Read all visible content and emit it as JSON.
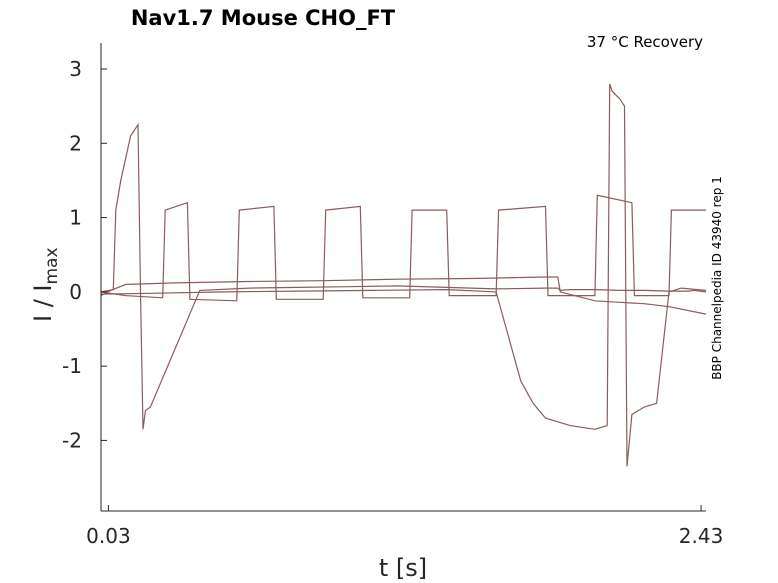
{
  "chart_data": {
    "type": "line",
    "title": "Nav1.7  Mouse  CHO_FT",
    "annotation": "37 °C  Recovery",
    "side_label": "BBP Channelpedia ID 43940 rep 1",
    "xlabel": "t [s]",
    "ylabel": "I / I",
    "ylabel_sub": "max",
    "xlim": [
      0.0,
      2.45
    ],
    "ylim": [
      -2.95,
      3.35
    ],
    "xticks": [
      0.03,
      2.43
    ],
    "xtick_labels": [
      "0.03",
      "2.43"
    ],
    "yticks": [
      3,
      2,
      1,
      0,
      -1,
      -2
    ],
    "ytick_labels": [
      "3",
      "2",
      "1",
      "0",
      "-1",
      "-2"
    ],
    "grid": false,
    "legend": "none",
    "color": "#8c5b5b",
    "series": [
      {
        "x": [
          0.0,
          0.05,
          0.06,
          0.08,
          0.1,
          0.12,
          0.15,
          0.16,
          0.17,
          0.18,
          0.2,
          0.4,
          0.6,
          0.8,
          1.0,
          1.2,
          1.4,
          1.6,
          1.8,
          1.85,
          1.86,
          1.9,
          2.0,
          2.1,
          2.2,
          2.3,
          2.38,
          2.4,
          2.45
        ],
        "y": [
          0.0,
          0.03,
          1.1,
          1.5,
          1.8,
          2.1,
          2.25,
          0.0,
          -1.85,
          -1.6,
          -1.55,
          0.02,
          0.05,
          0.06,
          0.07,
          0.08,
          0.06,
          0.04,
          0.05,
          0.05,
          0.02,
          0.03,
          0.03,
          0.02,
          0.02,
          0.01,
          0.01,
          0.02,
          0.0
        ]
      },
      {
        "x": [
          0.0,
          0.04,
          0.1,
          0.3,
          0.6,
          0.9,
          1.2,
          1.5,
          1.8,
          1.85,
          1.86,
          2.0,
          2.1,
          2.2,
          2.3,
          2.45
        ],
        "y": [
          -0.05,
          0.02,
          0.1,
          0.12,
          0.14,
          0.15,
          0.17,
          0.18,
          0.2,
          0.2,
          0.0,
          -0.12,
          -0.14,
          -0.16,
          -0.2,
          -0.3
        ]
      },
      {
        "x": [
          0.0,
          0.2,
          0.5,
          0.8,
          1.1,
          1.4,
          1.6,
          1.65,
          1.7,
          1.75,
          1.8,
          1.9,
          2.0,
          2.05,
          2.06,
          2.07,
          2.1,
          2.12,
          2.13,
          2.15,
          2.2,
          2.25,
          2.3,
          2.35,
          2.45
        ],
        "y": [
          -0.03,
          -0.02,
          0.0,
          0.01,
          0.02,
          0.03,
          0.0,
          -0.6,
          -1.2,
          -1.5,
          -1.7,
          -1.8,
          -1.85,
          -1.8,
          2.8,
          2.7,
          2.6,
          2.5,
          -2.35,
          -1.65,
          -1.55,
          -1.5,
          0.0,
          0.05,
          0.02
        ]
      },
      {
        "x": [
          0.0,
          0.1,
          0.25,
          0.26,
          0.35,
          0.36,
          0.55,
          0.56,
          0.7,
          0.71,
          0.9,
          0.91,
          1.05,
          1.06,
          1.25,
          1.26,
          1.4,
          1.41,
          1.6,
          1.61,
          1.8,
          1.81,
          2.0,
          2.01,
          2.15,
          2.16,
          2.3,
          2.31,
          2.45
        ],
        "y": [
          0.0,
          -0.05,
          -0.08,
          1.1,
          1.2,
          -0.1,
          -0.12,
          1.1,
          1.15,
          -0.1,
          -0.1,
          1.1,
          1.15,
          -0.08,
          -0.08,
          1.1,
          1.1,
          -0.05,
          -0.05,
          1.1,
          1.15,
          -0.05,
          -0.05,
          1.3,
          1.2,
          -0.05,
          -0.05,
          1.1,
          1.1
        ]
      }
    ]
  }
}
